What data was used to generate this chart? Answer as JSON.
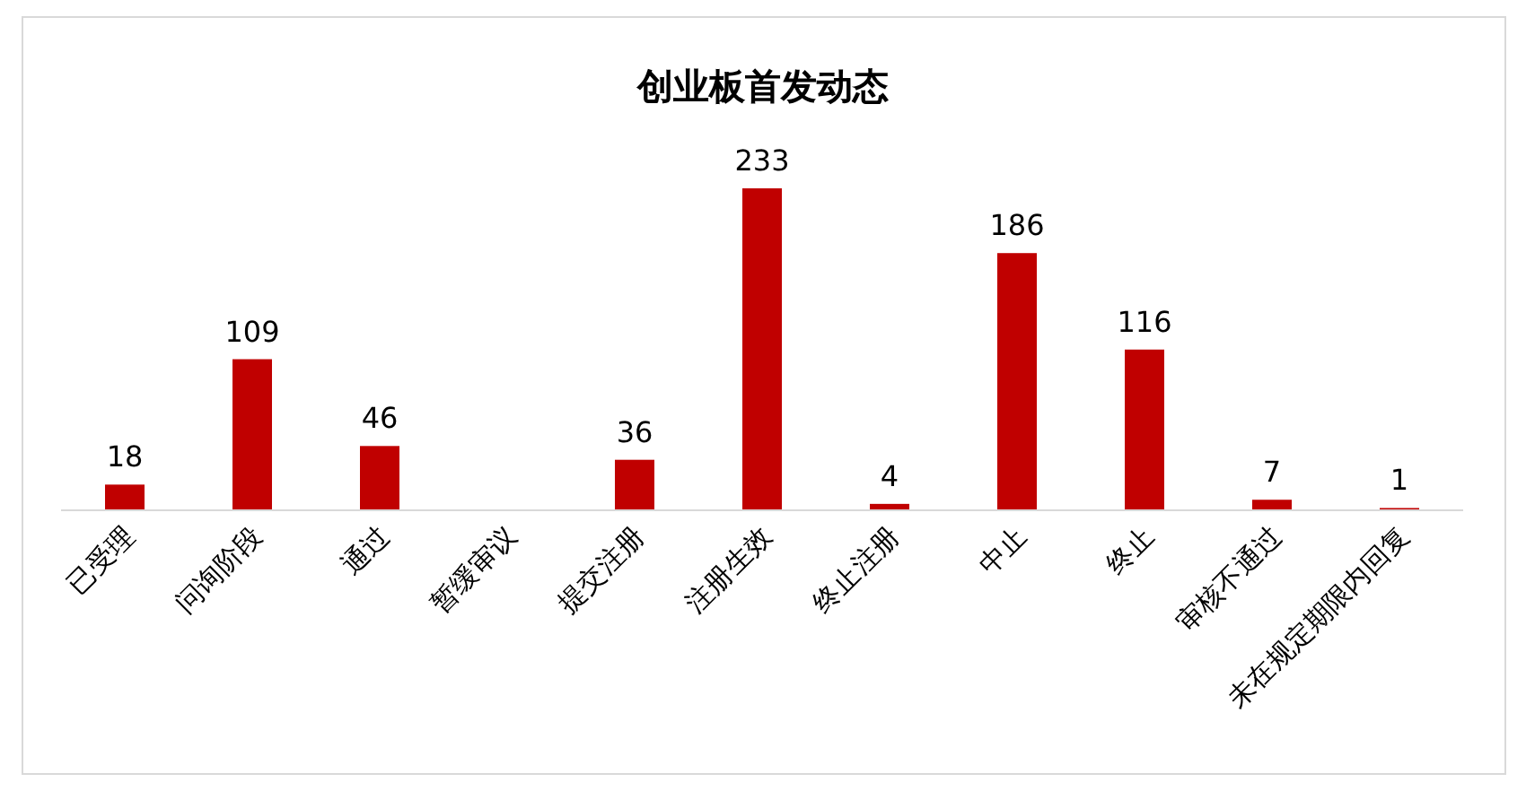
{
  "chart_data": {
    "type": "bar",
    "title": "创业板首发动态",
    "categories": [
      "已受理",
      "问询阶段",
      "通过",
      "暂缓审议",
      "提交注册",
      "注册生效",
      "终止注册",
      "中止",
      "终止",
      "审核不通过",
      "未在规定期限内回复"
    ],
    "values": [
      18,
      109,
      46,
      null,
      36,
      233,
      4,
      186,
      116,
      7,
      1
    ],
    "color": "#c00000",
    "data_labels": true
  }
}
